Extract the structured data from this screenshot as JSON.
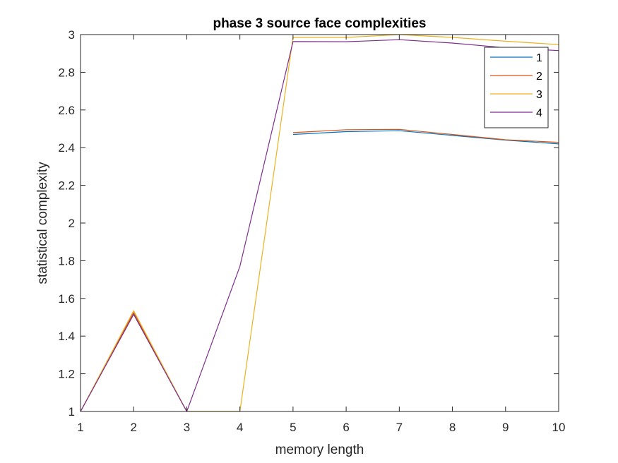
{
  "chart_data": {
    "type": "line",
    "title": "phase 3 source face complexities",
    "xlabel": "memory length",
    "ylabel": "statistical complexity",
    "xlim": [
      1,
      10
    ],
    "ylim": [
      1,
      3
    ],
    "xticks": [
      "1",
      "2",
      "3",
      "4",
      "5",
      "6",
      "7",
      "8",
      "9",
      "10"
    ],
    "yticks": [
      "1",
      "1.2",
      "1.4",
      "1.6",
      "1.8",
      "2",
      "2.2",
      "2.4",
      "2.6",
      "2.8",
      "3"
    ],
    "grid": false,
    "legend_position": "top-right",
    "x": [
      1,
      2,
      3,
      4,
      5,
      6,
      7,
      8,
      9,
      10
    ],
    "series": [
      {
        "name": "1",
        "color": "#0072BD",
        "values": [
          1,
          1.52,
          1,
          null,
          2.47,
          2.485,
          2.49,
          2.465,
          2.44,
          2.42
        ]
      },
      {
        "name": "2",
        "color": "#D95319",
        "values": [
          1,
          1.525,
          1,
          null,
          2.48,
          2.495,
          2.497,
          2.47,
          2.442,
          2.428
        ]
      },
      {
        "name": "3",
        "color": "#EDB120",
        "values": [
          1,
          1.535,
          1,
          1,
          2.985,
          2.985,
          3.0,
          2.985,
          2.965,
          2.947
        ]
      },
      {
        "name": "4",
        "color": "#7E2F8E",
        "values": [
          1,
          1.515,
          1,
          1.77,
          2.963,
          2.962,
          2.973,
          2.955,
          2.93,
          2.915
        ]
      }
    ]
  }
}
